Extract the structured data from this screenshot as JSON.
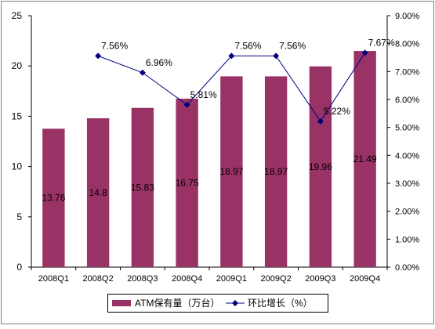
{
  "chart_data": {
    "type": "bar",
    "categories": [
      "2008Q1",
      "2008Q2",
      "2008Q3",
      "2008Q4",
      "2009Q1",
      "2009Q2",
      "2009Q3",
      "2009Q4"
    ],
    "series": [
      {
        "name": "ATM保有量（万台）",
        "type": "bar",
        "axis": "left",
        "values": [
          13.76,
          14.8,
          15.83,
          16.75,
          18.97,
          18.97,
          19.96,
          21.49
        ],
        "labels": [
          "13.76",
          "14.8",
          "15.83",
          "16.75",
          "18.97",
          "18.97",
          "19.96",
          "21.49"
        ],
        "color": "#993366"
      },
      {
        "name": "环比增长（%）",
        "type": "line",
        "axis": "right",
        "values": [
          null,
          7.56,
          6.96,
          5.81,
          7.56,
          7.56,
          5.22,
          7.67
        ],
        "labels": [
          "",
          "7.56%",
          "6.96%",
          "5.81%",
          "7.56%",
          "7.56%",
          "5.22%",
          "7.67%"
        ],
        "color": "#000080"
      }
    ],
    "y_left": {
      "ylim": [
        0,
        25
      ],
      "ticks": [
        "0",
        "5",
        "10",
        "15",
        "20",
        "25"
      ]
    },
    "y_right": {
      "ylim": [
        0,
        9
      ],
      "ticks": [
        "0.00%",
        "1.00%",
        "2.00%",
        "3.00%",
        "4.00%",
        "5.00%",
        "6.00%",
        "7.00%",
        "8.00%",
        "9.00%"
      ]
    },
    "legend": {
      "placement": "bottom"
    },
    "grid": false
  }
}
